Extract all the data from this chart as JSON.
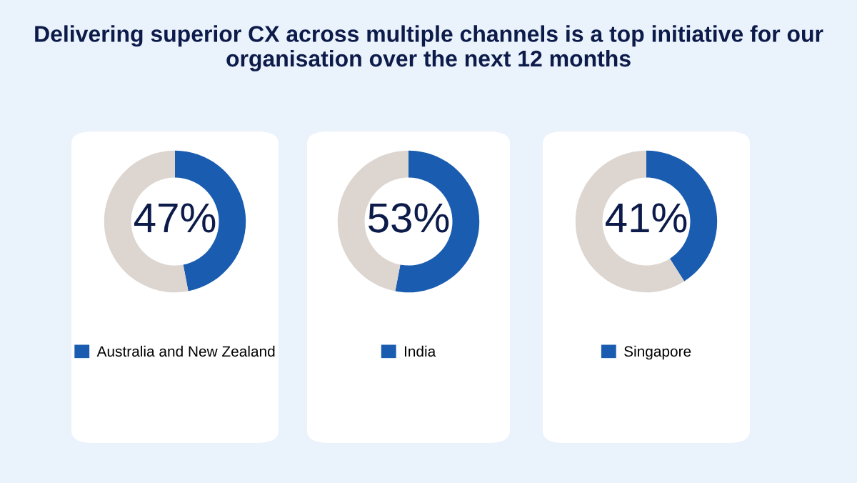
{
  "chart_data": [
    {
      "type": "donut",
      "title": "Delivering superior CX across multiple channels is a top initiative for our organisation over the next 12 months",
      "categories": [
        "Australia and New Zealand",
        null
      ],
      "values": [
        47,
        53
      ],
      "colors": [
        "#1a5cb0",
        "#ddd5cf"
      ],
      "value_labels": [
        "47%",
        null
      ],
      "legend": "bottom"
    },
    {
      "type": "donut",
      "categories": [
        "India",
        null
      ],
      "values": [
        53,
        47
      ],
      "colors": [
        "#1a5cb0",
        "#ddd5cf"
      ],
      "value_labels": [
        "53%",
        null
      ],
      "legend": "bottom"
    },
    {
      "type": "donut",
      "categories": [
        "Singapore",
        null
      ],
      "values": [
        41,
        59
      ],
      "colors": [
        "#1a5cb0",
        "#ddd5cf"
      ],
      "value_labels": [
        "41%",
        null
      ],
      "legend": "bottom"
    }
  ]
}
